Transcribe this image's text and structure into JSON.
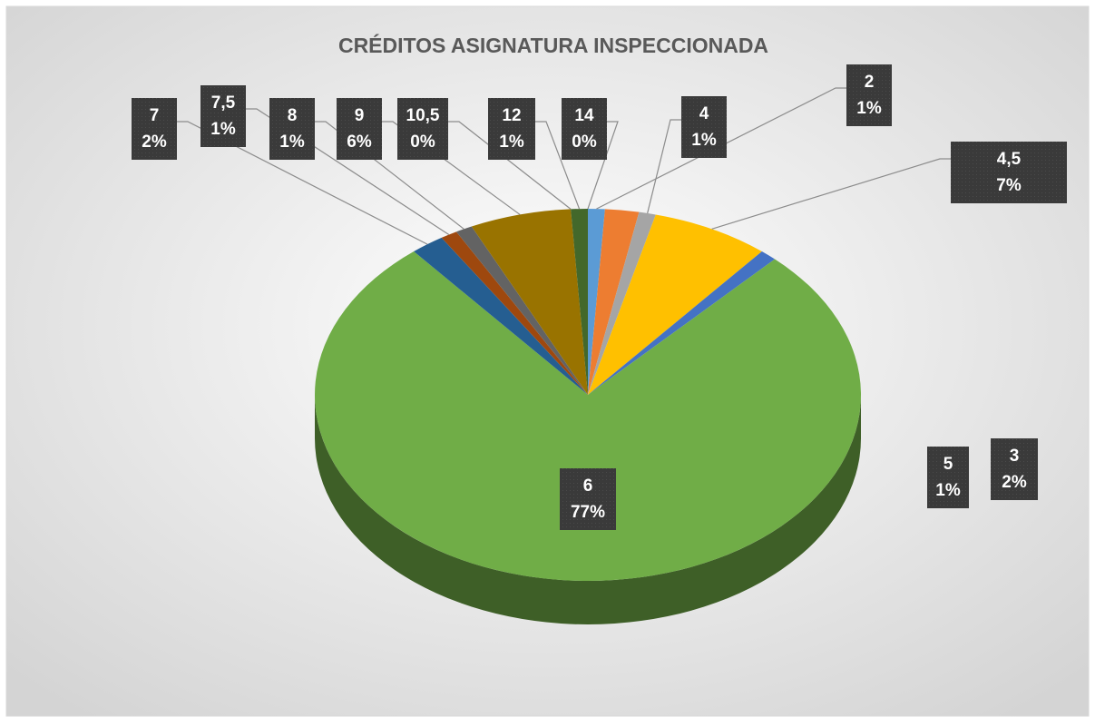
{
  "chart_data": {
    "type": "pie3d",
    "title": "CRÉDITOS ASIGNATURA INSPECCIONADA",
    "categories": [
      "2",
      "3",
      "4",
      "4,5",
      "5",
      "6",
      "7",
      "7,5",
      "8",
      "9",
      "10,5",
      "12",
      "14"
    ],
    "values": [
      1,
      2,
      1,
      7,
      1,
      77,
      2,
      1,
      1,
      6,
      0,
      1,
      0
    ],
    "value_labels": [
      "1%",
      "2%",
      "1%",
      "7%",
      "1%",
      "77%",
      "2%",
      "1%",
      "1%",
      "6%",
      "0%",
      "1%",
      "0%"
    ],
    "colors": [
      "#5b9bd5",
      "#ed7d31",
      "#a5a5a5",
      "#ffc000",
      "#4472c4",
      "#70ad47",
      "#255e91",
      "#9e480e",
      "#636363",
      "#997300",
      "#264478",
      "#43682b",
      "#698ed0"
    ]
  }
}
